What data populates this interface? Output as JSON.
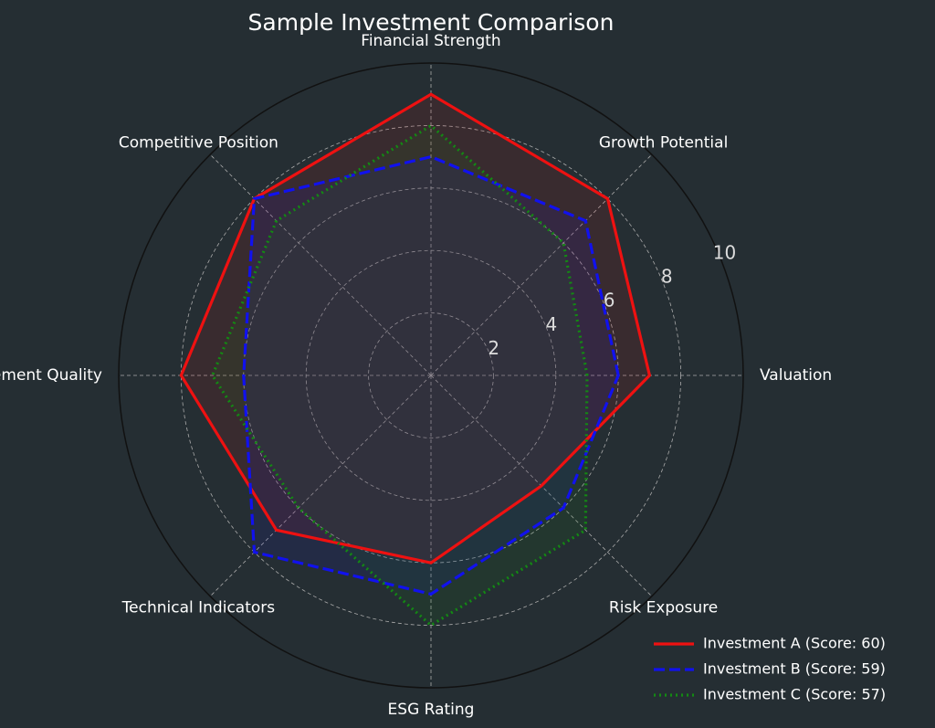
{
  "chart_data": {
    "type": "radar",
    "title": "Sample Investment Comparison",
    "axes": [
      "Valuation",
      "Growth Potential",
      "Financial Strength",
      "Competitive Position",
      "Management Quality",
      "Technical Indicators",
      "ESG Rating",
      "Risk Exposure"
    ],
    "rmax": 10,
    "radial_ticks": [
      2,
      4,
      6,
      8,
      10
    ],
    "grid": true,
    "legend_position": "bottom-right",
    "series": [
      {
        "name": "Investment A (Score: 60)",
        "values": [
          7,
          8,
          9,
          8,
          8,
          7,
          6,
          5
        ],
        "color": "#ee1111",
        "style": "solid"
      },
      {
        "name": "Investment B (Score: 59)",
        "values": [
          6,
          7,
          7,
          8,
          6,
          8,
          7,
          6
        ],
        "color": "#1111ee",
        "style": "dashed"
      },
      {
        "name": "Investment C (Score: 57)",
        "values": [
          5,
          6,
          8,
          7,
          7,
          6,
          8,
          7
        ],
        "color": "#138a13",
        "style": "dotted"
      }
    ]
  }
}
